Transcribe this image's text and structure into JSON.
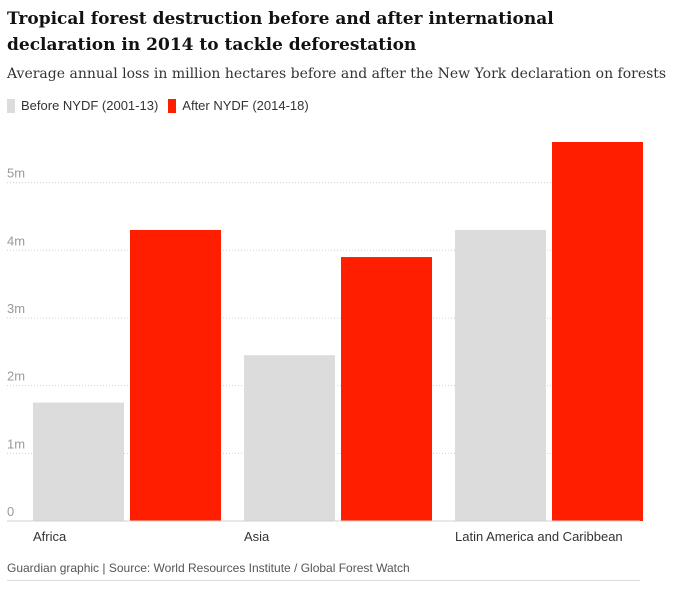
{
  "title": "Tropical forest destruction before and after international declaration in 2014 to tackle deforestation",
  "subtitle": "Average annual loss in million hectares before and after the New York declaration on forests",
  "footer": "Guardian graphic | Source: World Resources Institute / Global Forest Watch",
  "colors": {
    "before": "#dcdcdc",
    "after": "#ff1f00",
    "grid": "#d0d0d0",
    "tick": "#999999",
    "category": "#333333"
  },
  "chart_data": {
    "type": "bar",
    "categories": [
      "Africa",
      "Asia",
      "Latin America and Caribbean"
    ],
    "series": [
      {
        "name": "Before NYDF (2001-13)",
        "values": [
          1.75,
          2.45,
          4.3
        ]
      },
      {
        "name": "After NYDF (2014-18)",
        "values": [
          4.3,
          3.9,
          5.6
        ]
      }
    ],
    "ylim": [
      0,
      5.6
    ],
    "yticks": [
      0,
      1,
      2,
      3,
      4,
      5
    ],
    "ytick_labels": [
      "0",
      "1m",
      "2m",
      "3m",
      "4m",
      "5m"
    ],
    "grid": true,
    "legend": "top-left"
  }
}
